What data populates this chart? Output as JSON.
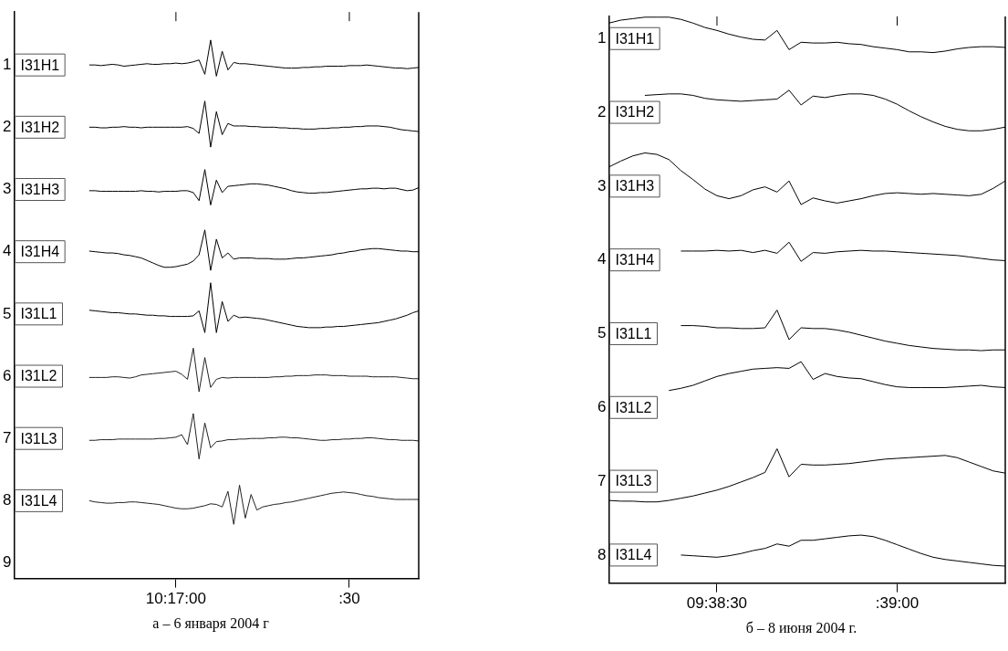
{
  "chart_data": [
    {
      "type": "line",
      "annotations": [
        "а – 6 января 2004 г"
      ],
      "categories": [
        null,
        null,
        null,
        null,
        null,
        null,
        null,
        null,
        null,
        null,
        null,
        null,
        null,
        null,
        null,
        null,
        null,
        null,
        null,
        null,
        null,
        null,
        null,
        null,
        null,
        null,
        null,
        null,
        "10:17:00",
        null,
        null,
        null,
        null,
        null,
        null,
        null,
        null,
        null,
        null,
        null,
        null,
        null,
        null,
        null,
        null,
        null,
        null,
        null,
        null,
        null,
        null,
        null,
        null,
        null,
        null,
        null,
        null,
        null,
        ":30",
        null,
        null,
        null,
        null,
        null,
        null,
        null,
        null,
        null,
        null,
        null,
        null
      ],
      "ylim": [
        9.25,
        0.15
      ],
      "yticks": [
        1,
        2,
        3,
        4,
        5,
        6,
        7,
        8,
        9
      ],
      "series": [
        {
          "name": "I31H1",
          "color": "#000000",
          "values": [
            null,
            null,
            null,
            null,
            null,
            null,
            null,
            null,
            null,
            null,
            null,
            null,
            null,
            1,
            1,
            1.01,
            1,
            0.99,
            1,
            1.02,
            1.01,
            1,
            0.99,
            0.98,
            0.99,
            0.99,
            0.98,
            0.98,
            0.97,
            0.98,
            0.97,
            0.95,
            0.92,
            1.15,
            0.6,
            1.18,
            0.78,
            1.08,
            0.96,
            0.98,
            0.98,
            0.99,
            1,
            1.01,
            1.02,
            1.03,
            1.04,
            1.05,
            1.05,
            1.05,
            1.04,
            1.04,
            1.03,
            1.03,
            1.02,
            1.02,
            1.02,
            1.02,
            1.01,
            1.01,
            1.01,
            1,
            1.01,
            1.02,
            1.03,
            1.04,
            1.05,
            1.05,
            1.06,
            1.05,
            1.04
          ]
        },
        {
          "name": "I31H2",
          "color": "#000000",
          "values": [
            null,
            null,
            null,
            null,
            null,
            null,
            null,
            null,
            null,
            null,
            null,
            null,
            null,
            2,
            2,
            2.01,
            2.01,
            2,
            2,
            1.99,
            2,
            2,
            2.01,
            2,
            2,
            2,
            2,
            2,
            2,
            2,
            1.99,
            2.02,
            2.1,
            1.58,
            2.32,
            1.75,
            2.12,
            1.94,
            1.98,
            1.98,
            1.98,
            1.99,
            1.99,
            2,
            2,
            2,
            2.01,
            2.01,
            2.02,
            2.02,
            2.03,
            2.03,
            2.03,
            2.02,
            2.02,
            2.01,
            2.01,
            2,
            2,
            1.99,
            1.99,
            1.98,
            1.98,
            1.98,
            1.99,
            2,
            2.02,
            2.04,
            2.05,
            2.06,
            2.07
          ]
        },
        {
          "name": "I31H3",
          "color": "#000000",
          "values": [
            null,
            null,
            null,
            null,
            null,
            null,
            null,
            null,
            null,
            null,
            null,
            null,
            null,
            3.02,
            3.02,
            3.03,
            3.03,
            3.03,
            3.03,
            3.03,
            3.03,
            3.03,
            3.02,
            3.03,
            3.03,
            3.04,
            3.03,
            3.03,
            3.03,
            3.02,
            3.02,
            3.05,
            3.18,
            2.68,
            3.25,
            2.85,
            3.05,
            2.95,
            2.94,
            2.93,
            2.92,
            2.91,
            2.91,
            2.92,
            2.93,
            2.95,
            2.97,
            2.99,
            3.02,
            3.04,
            3.05,
            3.06,
            3.06,
            3.05,
            3.05,
            3.04,
            3.03,
            3.02,
            3.01,
            3,
            2.99,
            2.99,
            2.98,
            2.98,
            2.99,
            2.98,
            2.98,
            3,
            3.02,
            3.01,
            2.97
          ]
        },
        {
          "name": "I31H4",
          "color": "#000000",
          "values": [
            null,
            null,
            null,
            null,
            null,
            null,
            null,
            null,
            null,
            null,
            null,
            null,
            null,
            3.99,
            4,
            4.01,
            4.02,
            4.02,
            4.03,
            4.05,
            4.06,
            4.08,
            4.1,
            4.14,
            4.18,
            4.22,
            4.25,
            4.25,
            4.24,
            4.22,
            4.2,
            4.15,
            4.05,
            3.65,
            4.3,
            3.8,
            4.1,
            4.02,
            4.12,
            4.1,
            4.1,
            4.1,
            4.11,
            4.11,
            4.11,
            4.12,
            4.12,
            4.12,
            4.11,
            4.1,
            4.1,
            4.09,
            4.08,
            4.07,
            4.06,
            4.05,
            4.03,
            4.02,
            4,
            3.99,
            3.97,
            3.96,
            3.95,
            3.95,
            3.96,
            3.97,
            3.98,
            3.99,
            3.99,
            4,
            4
          ]
        },
        {
          "name": "I31L1",
          "color": "#000000",
          "values": [
            null,
            null,
            null,
            null,
            null,
            null,
            null,
            null,
            null,
            null,
            null,
            null,
            null,
            4.94,
            4.95,
            4.96,
            4.97,
            4.98,
            4.98,
            4.99,
            5,
            5,
            5.01,
            5.02,
            5.02,
            5.03,
            5.03,
            5.04,
            5.04,
            5.04,
            5.04,
            5.03,
            4.95,
            5.3,
            4.5,
            5.3,
            4.8,
            5.12,
            5.02,
            5.06,
            5.05,
            5.06,
            5.07,
            5.08,
            5.1,
            5.12,
            5.14,
            5.16,
            5.18,
            5.2,
            5.21,
            5.22,
            5.22,
            5.22,
            5.21,
            5.21,
            5.2,
            5.2,
            5.19,
            5.18,
            5.17,
            5.16,
            5.15,
            5.14,
            5.12,
            5.1,
            5.08,
            5.05,
            5.02,
            4.98,
            4.95
          ]
        },
        {
          "name": "I31L2",
          "color": "#222222",
          "values": [
            null,
            null,
            null,
            null,
            null,
            null,
            null,
            null,
            null,
            null,
            null,
            null,
            null,
            6.02,
            6.02,
            6.02,
            6.02,
            6.01,
            6.01,
            6.02,
            6.03,
            6.01,
            5.98,
            5.97,
            5.96,
            5.95,
            5.94,
            5.93,
            5.92,
            5.97,
            6.05,
            5.55,
            6.25,
            5.7,
            6.18,
            6.05,
            6.02,
            6.03,
            6.02,
            6.02,
            6.02,
            6.02,
            6.02,
            6.02,
            6.02,
            6.01,
            6.01,
            6,
            6,
            5.99,
            5.99,
            5.99,
            5.98,
            5.98,
            5.98,
            5.99,
            5.99,
            5.99,
            6,
            6,
            6,
            6,
            6.01,
            6.01,
            6.01,
            6.01,
            6.01,
            6.02,
            6.03,
            6.04,
            6.04
          ]
        },
        {
          "name": "I31L3",
          "color": "#222222",
          "values": [
            null,
            null,
            null,
            null,
            null,
            null,
            null,
            null,
            null,
            null,
            null,
            null,
            null,
            7.03,
            7.03,
            7.02,
            7.02,
            7.02,
            7.01,
            7.01,
            7.01,
            7.01,
            7.01,
            7.01,
            7.01,
            7,
            7,
            6.99,
            6.98,
            6.94,
            7.1,
            6.6,
            7.33,
            6.75,
            7.15,
            7.05,
            7.04,
            7.02,
            7.02,
            7.01,
            7.01,
            7,
            7,
            7,
            6.99,
            6.99,
            6.98,
            6.98,
            6.99,
            6.99,
            7,
            7.01,
            7.02,
            7.03,
            7.03,
            7.02,
            7.02,
            7.01,
            7.01,
            7,
            7,
            6.99,
            6.99,
            7,
            7.01,
            7.02,
            7.02,
            7.03,
            7.03,
            7.03,
            7.04
          ]
        },
        {
          "name": "I31L4",
          "color": "#222222",
          "values": [
            null,
            null,
            null,
            null,
            null,
            null,
            null,
            null,
            null,
            null,
            null,
            null,
            null,
            8,
            8.02,
            8.03,
            8.04,
            8.04,
            8.03,
            8.03,
            8.02,
            8.02,
            8.03,
            8.04,
            8.05,
            8.06,
            8.08,
            8.1,
            8.12,
            8.13,
            8.13,
            8.12,
            8.1,
            8.08,
            8.05,
            8.06,
            8.1,
            7.85,
            8.38,
            7.75,
            8.28,
            7.9,
            8.15,
            8.1,
            8.08,
            8.06,
            8.05,
            8.03,
            8.02,
            8,
            7.98,
            7.96,
            7.94,
            7.92,
            7.9,
            7.88,
            7.87,
            7.86,
            7.87,
            7.88,
            7.9,
            7.92,
            7.93,
            7.95,
            7.96,
            7.97,
            7.98,
            7.98,
            7.98,
            7.98,
            7.98
          ]
        }
      ]
    },
    {
      "type": "line",
      "annotations": [
        "б –  8 июня 2004 г."
      ],
      "categories": [
        null,
        null,
        null,
        null,
        null,
        null,
        null,
        null,
        null,
        "09:38:30",
        null,
        null,
        null,
        null,
        null,
        null,
        null,
        null,
        null,
        null,
        null,
        null,
        null,
        null,
        ":39:00",
        null,
        null,
        null,
        null,
        null,
        null,
        null,
        null,
        null
      ],
      "ylim": [
        8.38,
        0.7
      ],
      "yticks": [
        1,
        2,
        3,
        4,
        5,
        6,
        7,
        8
      ],
      "series": [
        {
          "name": "I31H1",
          "color": "#000000",
          "values": [
            0.79,
            0.75,
            0.73,
            0.71,
            0.71,
            0.71,
            0.74,
            0.79,
            0.85,
            0.89,
            0.94,
            0.98,
            1.01,
            1.02,
            0.89,
            1.15,
            1.05,
            1.06,
            1.06,
            1.05,
            1.07,
            1.08,
            1.11,
            1.13,
            1.15,
            1.18,
            1.18,
            1.19,
            1.17,
            1.14,
            1.12,
            1.11,
            1.11,
            1.12
          ]
        },
        {
          "name": "I31H2",
          "color": "#000000",
          "values": [
            null,
            null,
            null,
            1.77,
            1.76,
            1.75,
            1.75,
            1.77,
            1.81,
            1.83,
            1.84,
            1.85,
            1.84,
            1.83,
            1.82,
            1.7,
            1.9,
            1.78,
            1.8,
            1.77,
            1.75,
            1.75,
            1.77,
            1.82,
            1.89,
            1.98,
            2.06,
            2.13,
            2.19,
            2.23,
            2.25,
            2.25,
            2.23,
            2.2
          ]
        },
        {
          "name": "I31H3",
          "color": "#000000",
          "values": [
            2.74,
            2.66,
            2.59,
            2.55,
            2.57,
            2.64,
            2.79,
            2.91,
            3.04,
            3.13,
            3.17,
            3.13,
            3.05,
            3.01,
            3.08,
            2.93,
            3.25,
            3.16,
            3.2,
            3.23,
            3.2,
            3.17,
            3.13,
            3.1,
            3.09,
            3.1,
            3.11,
            3.1,
            3.11,
            3.12,
            3.13,
            3.11,
            3.03,
            2.93
          ]
        },
        {
          "name": "I31H4",
          "color": "#000000",
          "values": [
            null,
            null,
            null,
            null,
            null,
            null,
            3.88,
            3.88,
            3.88,
            3.87,
            3.88,
            3.87,
            3.9,
            3.87,
            3.91,
            3.76,
            4.02,
            3.9,
            3.91,
            3.89,
            3.88,
            3.87,
            3.88,
            3.88,
            3.89,
            3.9,
            3.91,
            3.92,
            3.93,
            3.94,
            3.96,
            3.98,
            4,
            4.01
          ]
        },
        {
          "name": "I31L1",
          "color": "#000000",
          "values": [
            null,
            null,
            null,
            null,
            null,
            null,
            4.89,
            4.89,
            4.9,
            4.92,
            4.92,
            4.93,
            4.93,
            4.92,
            4.68,
            5.08,
            4.92,
            4.93,
            4.93,
            4.95,
            4.98,
            5.02,
            5.06,
            5.1,
            5.13,
            5.16,
            5.18,
            5.2,
            5.21,
            5.22,
            5.22,
            5.23,
            5.22,
            5.22
          ]
        },
        {
          "name": "I31L2",
          "color": "#000000",
          "values": [
            null,
            null,
            null,
            null,
            null,
            5.77,
            5.74,
            5.7,
            5.64,
            5.58,
            5.54,
            5.51,
            5.48,
            5.47,
            5.46,
            5.47,
            5.38,
            5.62,
            5.54,
            5.58,
            5.6,
            5.61,
            5.65,
            5.69,
            5.72,
            5.73,
            5.73,
            5.73,
            5.73,
            5.72,
            5.71,
            5.7,
            5.72,
            5.73
          ]
        },
        {
          "name": "I31L3",
          "color": "#000000",
          "values": [
            7.26,
            7.27,
            7.27,
            7.28,
            7.28,
            7.26,
            7.23,
            7.2,
            7.16,
            7.12,
            7.07,
            7.01,
            6.95,
            6.88,
            6.56,
            6.94,
            6.77,
            6.78,
            6.78,
            6.77,
            6.76,
            6.74,
            6.72,
            6.7,
            6.69,
            6.68,
            6.67,
            6.66,
            6.65,
            6.68,
            6.74,
            6.8,
            6.86,
            6.89
          ]
        },
        {
          "name": "I31L4",
          "color": "#000000",
          "values": [
            null,
            null,
            null,
            null,
            null,
            null,
            8,
            8.01,
            8.02,
            8.03,
            8.01,
            7.98,
            7.94,
            7.91,
            7.85,
            7.88,
            7.8,
            7.8,
            7.78,
            7.76,
            7.74,
            7.73,
            7.75,
            7.8,
            7.86,
            7.92,
            7.98,
            8.03,
            8.06,
            8.08,
            8.1,
            8.12,
            8.14,
            8.15
          ]
        }
      ]
    }
  ]
}
